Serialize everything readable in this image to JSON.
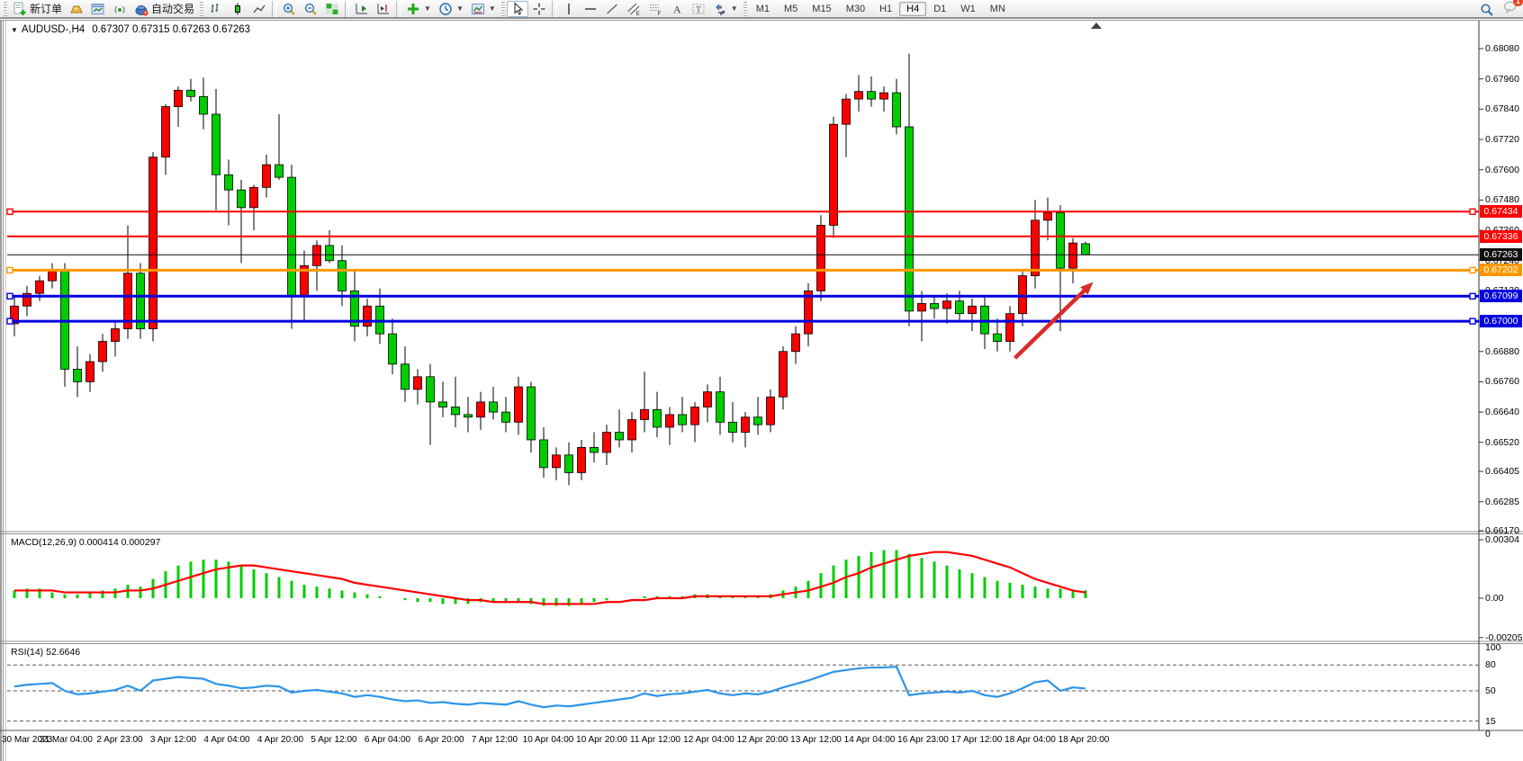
{
  "toolbar": {
    "new_order_label": "新订单",
    "auto_trading_label": "自动交易",
    "timeframes": [
      "M1",
      "M5",
      "M15",
      "M30",
      "H1",
      "H4",
      "D1",
      "W1",
      "MN"
    ],
    "active_timeframe": "H4",
    "notification_count": "1"
  },
  "chart_title": {
    "symbol": "AUDUSD-,H4",
    "ohlc": "0.67307 0.67315 0.67263 0.67263"
  },
  "indicators": {
    "macd_label": "MACD(12,26,9)",
    "macd_values": "0.000414 0.000297",
    "rsi_label": "RSI(14)",
    "rsi_value": "52.6646"
  },
  "price_axis": {
    "ticks": [
      {
        "label": "0.68080",
        "price": 0.6808
      },
      {
        "label": "0.67960",
        "price": 0.6796
      },
      {
        "label": "0.67840",
        "price": 0.6784
      },
      {
        "label": "0.67720",
        "price": 0.6772
      },
      {
        "label": "0.67600",
        "price": 0.676
      },
      {
        "label": "0.67480",
        "price": 0.6748
      },
      {
        "label": "0.67360",
        "price": 0.6736
      },
      {
        "label": "0.67240",
        "price": 0.6724
      },
      {
        "label": "0.67120",
        "price": 0.6712
      },
      {
        "label": "0.67000",
        "price": 0.67
      },
      {
        "label": "0.66880",
        "price": 0.6688
      },
      {
        "label": "0.66760",
        "price": 0.6676
      },
      {
        "label": "0.66640",
        "price": 0.6664
      },
      {
        "label": "0.66520",
        "price": 0.6652
      },
      {
        "label": "0.66405",
        "price": 0.66405
      },
      {
        "label": "0.66285",
        "price": 0.66285
      },
      {
        "label": "0.66170",
        "price": 0.6617
      }
    ],
    "badges": [
      {
        "label": "0.67434",
        "price": 0.67434,
        "bg": "#ff0000"
      },
      {
        "label": "0.67336",
        "price": 0.67336,
        "bg": "#ff0000"
      },
      {
        "label": "0.67263",
        "price": 0.67263,
        "bg": "#111111"
      },
      {
        "label": "0.67202",
        "price": 0.67202,
        "bg": "#ff9800"
      },
      {
        "label": "0.67099",
        "price": 0.67099,
        "bg": "#0000e0"
      },
      {
        "label": "0.67000",
        "price": 0.67,
        "bg": "#0000e0"
      }
    ]
  },
  "macd_axis": [
    {
      "label": "0.00304",
      "value": 0.00304
    },
    {
      "label": "0.00",
      "value": 0
    },
    {
      "label": "-0.00205",
      "value": -0.00205
    }
  ],
  "rsi_axis": [
    {
      "label": "100",
      "value": 100
    },
    {
      "label": "80",
      "value": 80
    },
    {
      "label": "50",
      "value": 50
    },
    {
      "label": "15",
      "value": 15
    },
    {
      "label": "0",
      "value": 0
    }
  ],
  "time_axis": {
    "labels": [
      "30 Mar 2023",
      "31 Mar 04:00",
      "2 Apr 23:00",
      "3 Apr 12:00",
      "4 Apr 04:00",
      "4 Apr 20:00",
      "5 Apr 12:00",
      "6 Apr 04:00",
      "6 Apr 20:00",
      "7 Apr 12:00",
      "10 Apr 04:00",
      "10 Apr 20:00",
      "11 Apr 12:00",
      "12 Apr 04:00",
      "12 Apr 20:00",
      "13 Apr 12:00",
      "14 Apr 04:00",
      "16 Apr 23:00",
      "17 Apr 12:00",
      "18 Apr 04:00",
      "18 Apr 20:00"
    ]
  },
  "chart_data": {
    "type": "candlestick",
    "symbol": "AUDUSD",
    "period": "H4",
    "title": "AUDUSD-,H4 0.67307 0.67315 0.67263 0.67263",
    "price_range": {
      "top": 0.6808,
      "bottom": 0.6617
    },
    "up_color": "#ff0000",
    "down_color": "#00cd00",
    "candles_ohlc": [
      [
        0.6699,
        0.671,
        0.6694,
        0.6706
      ],
      [
        0.6706,
        0.6714,
        0.6702,
        0.6711
      ],
      [
        0.6711,
        0.6718,
        0.6708,
        0.6716
      ],
      [
        0.6716,
        0.6723,
        0.6713,
        0.672
      ],
      [
        0.672,
        0.6723,
        0.6674,
        0.6681
      ],
      [
        0.6681,
        0.669,
        0.667,
        0.6676
      ],
      [
        0.6676,
        0.6687,
        0.6672,
        0.6684
      ],
      [
        0.6684,
        0.6695,
        0.668,
        0.6692
      ],
      [
        0.6692,
        0.67,
        0.6686,
        0.6697
      ],
      [
        0.6697,
        0.6738,
        0.6693,
        0.6719
      ],
      [
        0.6719,
        0.6723,
        0.6693,
        0.6697
      ],
      [
        0.6697,
        0.6767,
        0.6692,
        0.6765
      ],
      [
        0.6765,
        0.6786,
        0.6758,
        0.6785
      ],
      [
        0.6785,
        0.6793,
        0.6777,
        0.67915
      ],
      [
        0.67915,
        0.6796,
        0.6787,
        0.6789
      ],
      [
        0.6789,
        0.67965,
        0.6776,
        0.6782
      ],
      [
        0.6782,
        0.6792,
        0.6744,
        0.6758
      ],
      [
        0.6758,
        0.6764,
        0.6738,
        0.6752
      ],
      [
        0.6752,
        0.6756,
        0.6723,
        0.6745
      ],
      [
        0.6745,
        0.6754,
        0.6736,
        0.6753
      ],
      [
        0.6753,
        0.6766,
        0.6749,
        0.6762
      ],
      [
        0.6762,
        0.6782,
        0.6756,
        0.6757
      ],
      [
        0.6757,
        0.6762,
        0.6697,
        0.671
      ],
      [
        0.671,
        0.6728,
        0.67,
        0.6722
      ],
      [
        0.6722,
        0.6732,
        0.6712,
        0.673
      ],
      [
        0.673,
        0.6736,
        0.6723,
        0.6724
      ],
      [
        0.6724,
        0.673,
        0.6706,
        0.6712
      ],
      [
        0.6712,
        0.672,
        0.6692,
        0.6698
      ],
      [
        0.6698,
        0.6709,
        0.6694,
        0.6706
      ],
      [
        0.6706,
        0.6713,
        0.6691,
        0.6695
      ],
      [
        0.6695,
        0.6701,
        0.6679,
        0.6683
      ],
      [
        0.6683,
        0.669,
        0.6668,
        0.6673
      ],
      [
        0.6673,
        0.6681,
        0.6667,
        0.6678
      ],
      [
        0.6678,
        0.6683,
        0.6651,
        0.6668
      ],
      [
        0.6668,
        0.6676,
        0.6662,
        0.6666
      ],
      [
        0.6666,
        0.6678,
        0.6658,
        0.6663
      ],
      [
        0.6663,
        0.667,
        0.6656,
        0.6662
      ],
      [
        0.6662,
        0.6672,
        0.6657,
        0.6668
      ],
      [
        0.6668,
        0.6674,
        0.6661,
        0.6664
      ],
      [
        0.6664,
        0.667,
        0.6656,
        0.666
      ],
      [
        0.666,
        0.6678,
        0.6655,
        0.6674
      ],
      [
        0.6674,
        0.6676,
        0.6648,
        0.6653
      ],
      [
        0.6653,
        0.6658,
        0.6638,
        0.6642
      ],
      [
        0.6642,
        0.665,
        0.6637,
        0.6647
      ],
      [
        0.6647,
        0.6652,
        0.6635,
        0.664
      ],
      [
        0.664,
        0.6653,
        0.6637,
        0.665
      ],
      [
        0.665,
        0.6656,
        0.6644,
        0.6648
      ],
      [
        0.6648,
        0.6659,
        0.6643,
        0.6656
      ],
      [
        0.6656,
        0.6665,
        0.665,
        0.6653
      ],
      [
        0.6653,
        0.6664,
        0.6648,
        0.6661
      ],
      [
        0.6661,
        0.668,
        0.6656,
        0.6665
      ],
      [
        0.6665,
        0.6672,
        0.6654,
        0.6658
      ],
      [
        0.6658,
        0.6666,
        0.6651,
        0.6663
      ],
      [
        0.6663,
        0.667,
        0.6656,
        0.6659
      ],
      [
        0.6659,
        0.6668,
        0.6652,
        0.6666
      ],
      [
        0.6666,
        0.6675,
        0.666,
        0.6672
      ],
      [
        0.6672,
        0.6678,
        0.6655,
        0.666
      ],
      [
        0.666,
        0.6668,
        0.6652,
        0.6656
      ],
      [
        0.6656,
        0.6664,
        0.665,
        0.6662
      ],
      [
        0.6662,
        0.667,
        0.6655,
        0.6659
      ],
      [
        0.6659,
        0.6673,
        0.6656,
        0.667
      ],
      [
        0.667,
        0.669,
        0.6665,
        0.6688
      ],
      [
        0.6688,
        0.6698,
        0.6683,
        0.6695
      ],
      [
        0.6695,
        0.6715,
        0.669,
        0.6712
      ],
      [
        0.6712,
        0.6742,
        0.6708,
        0.6738
      ],
      [
        0.6738,
        0.6781,
        0.6733,
        0.6778
      ],
      [
        0.6778,
        0.679,
        0.6765,
        0.6788
      ],
      [
        0.6788,
        0.67975,
        0.6783,
        0.6791
      ],
      [
        0.6791,
        0.6797,
        0.6785,
        0.6788
      ],
      [
        0.6788,
        0.6793,
        0.6783,
        0.67905
      ],
      [
        0.67905,
        0.6796,
        0.6774,
        0.6777
      ],
      [
        0.6777,
        0.6806,
        0.6698,
        0.6704
      ],
      [
        0.6704,
        0.6712,
        0.6692,
        0.6707
      ],
      [
        0.6707,
        0.671,
        0.6701,
        0.6705
      ],
      [
        0.6705,
        0.6711,
        0.6699,
        0.6708
      ],
      [
        0.6708,
        0.6712,
        0.67,
        0.6703
      ],
      [
        0.6703,
        0.6709,
        0.6696,
        0.6706
      ],
      [
        0.6706,
        0.671,
        0.6689,
        0.6695
      ],
      [
        0.6695,
        0.6701,
        0.6688,
        0.6692
      ],
      [
        0.6692,
        0.6706,
        0.6688,
        0.6703
      ],
      [
        0.6703,
        0.672,
        0.6698,
        0.6718
      ],
      [
        0.6718,
        0.6748,
        0.6713,
        0.674
      ],
      [
        0.674,
        0.6749,
        0.6732,
        0.6743
      ],
      [
        0.6743,
        0.6746,
        0.6696,
        0.6721
      ],
      [
        0.6721,
        0.6733,
        0.6715,
        0.6731
      ],
      [
        0.67307,
        0.67315,
        0.67263,
        0.67263
      ]
    ],
    "hlines": [
      {
        "price": 0.67434,
        "color": "#ff0000",
        "w": 2,
        "handles": true
      },
      {
        "price": 0.67336,
        "color": "#ff0000",
        "w": 2,
        "handles": false
      },
      {
        "price": 0.67202,
        "color": "#ff9800",
        "w": 3,
        "handles": true
      },
      {
        "price": 0.67099,
        "color": "#0000e0",
        "w": 3,
        "handles": true
      },
      {
        "price": 0.67,
        "color": "#0000e0",
        "w": 3,
        "handles": true
      }
    ],
    "current_price": 0.67263,
    "arrow": {
      "from_bar": 79.4,
      "from_price": 0.66854,
      "to_bar": 85.6,
      "to_price": 0.67155,
      "color": "#d92b2b"
    },
    "macd": {
      "scale": 0.0001,
      "range_top": 0.00304,
      "range_bottom": -0.00205,
      "histogram": [
        4,
        5,
        5,
        3,
        2,
        2,
        3,
        4,
        5,
        7,
        6,
        10,
        14,
        17,
        19,
        20,
        20,
        19,
        17,
        15,
        13,
        11,
        9,
        7,
        6,
        5,
        4,
        3,
        2,
        1,
        0,
        -1,
        -2,
        -2,
        -3,
        -3,
        -3,
        -2,
        -2,
        -2,
        -2,
        -3,
        -4,
        -4,
        -4,
        -3,
        -2,
        -1,
        0,
        0,
        1,
        1,
        1,
        1,
        2,
        2,
        1,
        1,
        1,
        1,
        2,
        4,
        6,
        9,
        13,
        17,
        20,
        22,
        24,
        25,
        25,
        23,
        21,
        19,
        17,
        15,
        13,
        11,
        9,
        8,
        7,
        6,
        5,
        5,
        4,
        4.14
      ],
      "signal": [
        4,
        4,
        4,
        4,
        3,
        3,
        3,
        3,
        3,
        4,
        4,
        5,
        7,
        9,
        11,
        13,
        15,
        16,
        17,
        17,
        16,
        15,
        14,
        13,
        12,
        11,
        10,
        8,
        7,
        6,
        5,
        4,
        3,
        2,
        1,
        0,
        -1,
        -1,
        -2,
        -2,
        -2,
        -2,
        -3,
        -3,
        -3,
        -3,
        -3,
        -2,
        -2,
        -1,
        -1,
        0,
        0,
        0,
        1,
        1,
        1,
        1,
        1,
        1,
        1,
        2,
        3,
        4,
        6,
        8,
        11,
        13,
        16,
        18,
        20,
        22,
        23,
        24,
        24,
        23,
        22,
        20,
        18,
        16,
        13,
        10,
        8,
        6,
        4,
        2.97
      ],
      "hist_color": "#00cd00",
      "signal_color": "#ff0000"
    },
    "rsi": {
      "values": [
        55,
        57,
        58,
        59,
        50,
        46,
        47,
        49,
        51,
        56,
        50,
        62,
        64,
        66,
        65,
        64,
        58,
        56,
        53,
        54,
        56,
        55,
        48,
        50,
        51,
        49,
        47,
        43,
        45,
        43,
        40,
        38,
        39,
        36,
        37,
        35,
        34,
        36,
        35,
        34,
        38,
        34,
        31,
        33,
        32,
        34,
        36,
        38,
        40,
        42,
        47,
        44,
        46,
        47,
        49,
        51,
        47,
        45,
        47,
        46,
        49,
        54,
        58,
        62,
        67,
        72,
        74,
        76,
        77,
        77,
        78,
        45,
        47,
        48,
        49,
        48,
        50,
        45,
        43,
        47,
        53,
        60,
        62,
        50,
        54,
        52.66
      ],
      "levels": [
        80,
        50,
        15
      ],
      "line_color": "#2e95ea"
    }
  }
}
